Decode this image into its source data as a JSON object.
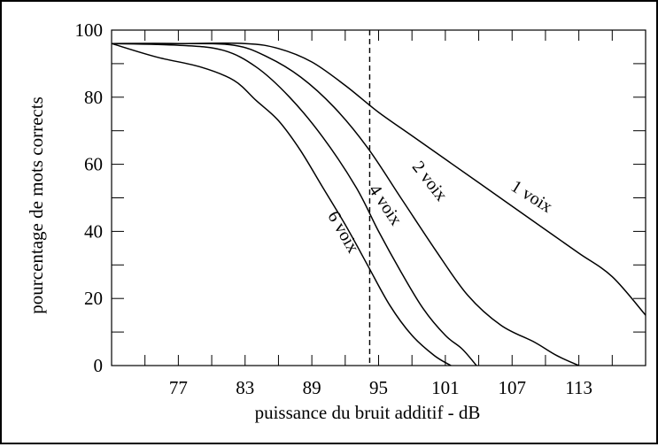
{
  "chart_data": {
    "type": "line",
    "title": "",
    "xlabel": "puissance du bruit additif - dB",
    "ylabel": "pourcentage de mots corrects",
    "xlim": [
      71,
      119
    ],
    "ylim": [
      0,
      100
    ],
    "x_ticks": [
      "77",
      "83",
      "89",
      "95",
      "101",
      "107",
      "113"
    ],
    "y_ticks": [
      "0",
      "20",
      "40",
      "60",
      "80",
      "100"
    ],
    "vertical_marker": {
      "x": 94.2,
      "style": "dashed"
    },
    "grid": false,
    "series": [
      {
        "name": "1 voix",
        "points": [
          [
            71,
            96
          ],
          [
            77,
            96
          ],
          [
            83,
            96
          ],
          [
            86,
            94.5
          ],
          [
            89,
            90.5
          ],
          [
            92,
            83.5
          ],
          [
            95,
            75.5
          ],
          [
            98,
            68.5
          ],
          [
            101,
            61.5
          ],
          [
            104,
            54.5
          ],
          [
            107,
            47.5
          ],
          [
            110,
            40.5
          ],
          [
            113,
            33.5
          ],
          [
            116,
            26.5
          ],
          [
            119,
            15
          ]
        ]
      },
      {
        "name": "2 voix",
        "points": [
          [
            71,
            96
          ],
          [
            77,
            96
          ],
          [
            82,
            95.5
          ],
          [
            85,
            92
          ],
          [
            88,
            86
          ],
          [
            91,
            77
          ],
          [
            94,
            65
          ],
          [
            97,
            50
          ],
          [
            100,
            35
          ],
          [
            103,
            21
          ],
          [
            106,
            12
          ],
          [
            109,
            7
          ],
          [
            111,
            3
          ],
          [
            113,
            0
          ]
        ]
      },
      {
        "name": "4 voix",
        "points": [
          [
            71,
            96
          ],
          [
            77,
            95.5
          ],
          [
            81,
            94
          ],
          [
            84,
            89
          ],
          [
            87,
            80
          ],
          [
            90,
            68
          ],
          [
            93,
            53
          ],
          [
            95,
            40
          ],
          [
            97,
            28
          ],
          [
            99,
            17
          ],
          [
            101,
            9
          ],
          [
            102.5,
            5
          ],
          [
            103.8,
            0
          ]
        ]
      },
      {
        "name": "6 voix",
        "points": [
          [
            71,
            96
          ],
          [
            75,
            92
          ],
          [
            79,
            89
          ],
          [
            82,
            85
          ],
          [
            84,
            79
          ],
          [
            86,
            73
          ],
          [
            88,
            64
          ],
          [
            90,
            53
          ],
          [
            92,
            42
          ],
          [
            94,
            30
          ],
          [
            96,
            18
          ],
          [
            98,
            9
          ],
          [
            100,
            3
          ],
          [
            101.5,
            0
          ]
        ]
      }
    ]
  }
}
